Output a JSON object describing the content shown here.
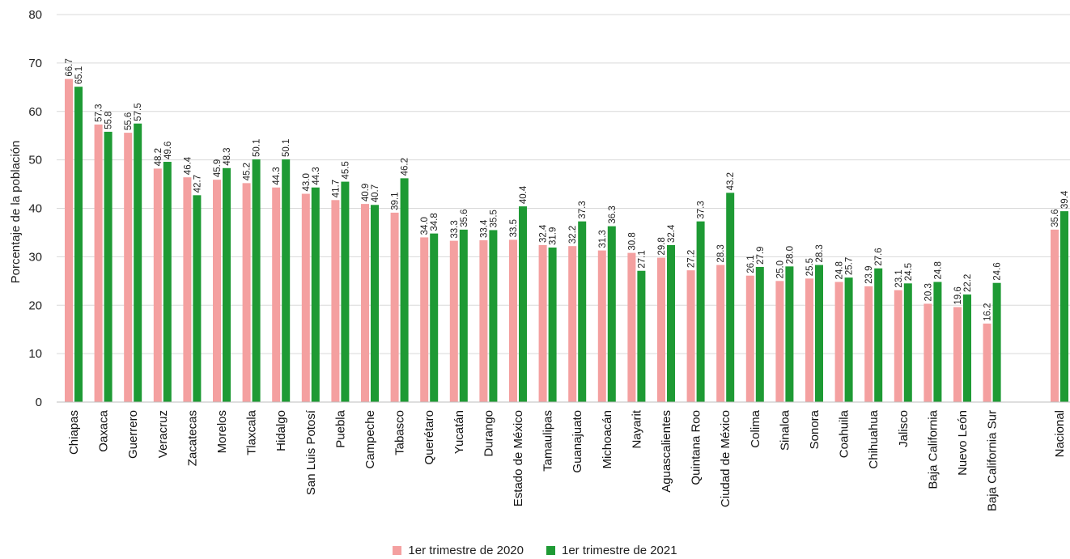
{
  "chart_data": {
    "type": "bar",
    "ylabel": "Porcentaje de la población",
    "ylim": [
      0,
      80
    ],
    "yticks": [
      0,
      10,
      20,
      30,
      40,
      50,
      60,
      70,
      80
    ],
    "grid": true,
    "legend_position": "bottom",
    "categories": [
      "Chiapas",
      "Oaxaca",
      "Guerrero",
      "Veracruz",
      "Zacatecas",
      "Morelos",
      "Tlaxcala",
      "Hidalgo",
      "San Luis Potosí",
      "Puebla",
      "Campeche",
      "Tabasco",
      "Querétaro",
      "Yucatán",
      "Durango",
      "Estado de México",
      "Tamaulipas",
      "Guanajuato",
      "Michoacán",
      "Nayarit",
      "Aguascalientes",
      "Quintana Roo",
      "Ciudad de México",
      "Colima",
      "Sinaloa",
      "Sonora",
      "Coahuila",
      "Chihuahua",
      "Jalisco",
      "Baja California",
      "Nuevo León",
      "Baja California Sur",
      "Nacional"
    ],
    "series": [
      {
        "name": "1er trimestre de 2020",
        "color": "#F4A0A0",
        "values": [
          66.7,
          57.3,
          55.6,
          48.2,
          46.4,
          45.9,
          45.2,
          44.3,
          43.0,
          41.7,
          40.9,
          39.1,
          34.0,
          33.3,
          33.4,
          33.5,
          32.4,
          32.2,
          31.3,
          30.8,
          29.8,
          27.2,
          28.3,
          26.1,
          25.0,
          25.5,
          24.8,
          23.9,
          23.1,
          20.3,
          19.6,
          16.2,
          35.6
        ],
        "labels": [
          "66.7",
          "57.3",
          "55.6",
          "48.2",
          "46.4",
          "45.9",
          "45.2",
          "44.3",
          "43.0",
          "41.7",
          "40.9",
          "39.1",
          "34.0",
          "33.3",
          "33.4",
          "33.5",
          "32.4",
          "32.2",
          "31.3",
          "30.8",
          "29.8",
          "27.2",
          "28.3",
          "26.1",
          "25.0",
          "25.5",
          "24.8",
          "23.9",
          "23.1",
          "20.3",
          "19.6",
          "16.2",
          "35.6"
        ]
      },
      {
        "name": "1er trimestre de 2021",
        "color": "#1E9A34",
        "values": [
          65.1,
          55.8,
          57.5,
          49.6,
          42.7,
          48.3,
          50.1,
          50.1,
          44.3,
          45.5,
          40.7,
          46.2,
          34.8,
          35.6,
          35.5,
          40.4,
          31.9,
          37.3,
          36.3,
          27.1,
          32.4,
          37.3,
          43.2,
          27.9,
          28.0,
          28.3,
          25.7,
          27.6,
          24.5,
          24.8,
          22.2,
          24.6,
          39.4
        ],
        "labels": [
          "65.1",
          "55.8",
          "57.5",
          "49.6",
          "42.7",
          "48.3",
          "50.1",
          "50.1",
          "44.3",
          "45.5",
          "40.7",
          "46.2",
          "34.8",
          "35.6",
          "35.5",
          "40.4",
          "31.9",
          "37.3",
          "36.3",
          "27.1",
          "32.4",
          "37.3",
          "43.2",
          "27.9",
          "28.0",
          "28.3",
          "25.7",
          "27.6",
          "24.5",
          "24.8",
          "22.2",
          "24.6",
          "39.4"
        ]
      }
    ]
  }
}
